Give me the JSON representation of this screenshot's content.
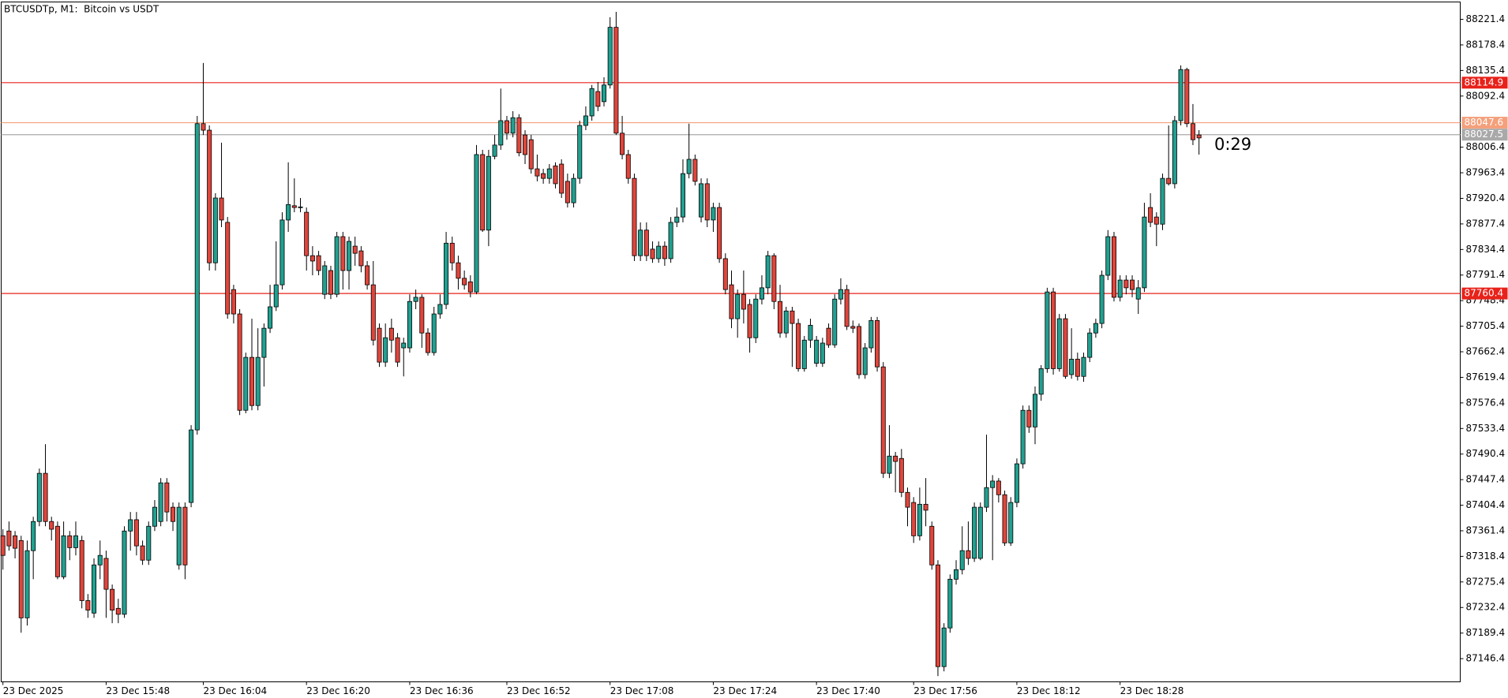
{
  "chart_data": {
    "type": "candlestick",
    "title": "BTCUSDTp, M1:  Bitcoin vs USDT",
    "up_color": "#21a090",
    "down_color": "#e0453b",
    "wick_color": "#000000",
    "ylim": [
      87107.4,
      88250.6
    ],
    "yticks": [
      88221.4,
      88178.4,
      88135.4,
      88092.4,
      88006.4,
      87963.4,
      87920.4,
      87877.4,
      87834.4,
      87791.4,
      87748.4,
      87705.4,
      87662.4,
      87619.4,
      87576.4,
      87533.4,
      87490.4,
      87447.4,
      87404.4,
      87361.4,
      87318.4,
      87275.4,
      87232.4,
      87189.4,
      87146.4
    ],
    "xticks": [
      {
        "value": 0,
        "label": "23 Dec 2025"
      },
      {
        "value": 17,
        "label": "23 Dec 15:48"
      },
      {
        "value": 33,
        "label": "23 Dec 16:04"
      },
      {
        "value": 50,
        "label": "23 Dec 16:20"
      },
      {
        "value": 67,
        "label": "23 Dec 16:36"
      },
      {
        "value": 83,
        "label": "23 Dec 16:52"
      },
      {
        "value": 100,
        "label": "23 Dec 17:08"
      },
      {
        "value": 117,
        "label": "23 Dec 17:24"
      },
      {
        "value": 134,
        "label": "23 Dec 17:40"
      },
      {
        "value": 150,
        "label": "23 Dec 17:56"
      },
      {
        "value": 167,
        "label": "23 Dec 18:12"
      },
      {
        "value": 184,
        "label": "23 Dec 18:28"
      }
    ],
    "price_lines": [
      {
        "value": 88114.9,
        "color": "#e8221a"
      },
      {
        "value": 88047.6,
        "color": "#f4a07c"
      },
      {
        "value": 88027.5,
        "color": "#a9a9a9"
      },
      {
        "value": 87760.4,
        "color": "#e8221a"
      }
    ],
    "countdown": "0:29",
    "countdown_color": "#2aa394",
    "open": [
      87353,
      87361,
      87353,
      87345,
      87215,
      87328,
      87377,
      87458,
      87377,
      87369,
      87284,
      87353,
      87333,
      87345,
      87244,
      87223,
      87304,
      87315,
      87263,
      87231,
      87221,
      87361,
      87380,
      87336,
      87312,
      87369,
      87377,
      87442,
      87401,
      87304,
      87401,
      87409,
      87531,
      88046,
      88035,
      87812,
      87921,
      87880,
      87767,
      87726,
      87564,
      87653,
      87572,
      87653,
      87702,
      87738,
      87775,
      87884,
      87908,
      87905,
      87897,
      87824,
      87824,
      87759,
      87799,
      87759,
      87856,
      87799,
      87840,
      87832,
      87807,
      87775,
      87702,
      87645,
      87702,
      87686,
      87669,
      87669,
      87747,
      87754,
      87694,
      87661,
      87726,
      87742,
      87845,
      87812,
      87786,
      87780,
      87763,
      87994,
      87867,
      87991,
      88010,
      88051,
      88030,
      88056,
      88027,
      88019,
      87970,
      87962,
      87954,
      87975,
      87978,
      87949,
      87913,
      87954,
      88043,
      88059,
      88100,
      88083,
      88111,
      88208,
      88030,
      87994,
      87954,
      87824,
      87867,
      87835,
      87819,
      87840,
      87819,
      87880,
      87889,
      87962,
      87986,
      87889,
      87945,
      87884,
      87905,
      87819,
      87775,
      87718,
      87759,
      87742,
      87686,
      87751,
      87770,
      87824,
      87747,
      87694,
      87731,
      87710,
      87634,
      87682,
      87643,
      87643,
      87702,
      87674,
      87751,
      87767,
      87705,
      87705,
      87624,
      87669,
      87715,
      87637,
      87458,
      87487,
      87483,
      87426,
      87409,
      87353,
      87406,
      87369,
      87304,
      87133,
      87198,
      87280,
      87296,
      87328,
      87315,
      87315,
      87401,
      87434,
      87445,
      87422,
      87341,
      87409,
      87474,
      87564,
      87536,
      87591,
      87634,
      87763,
      87634,
      87718,
      87624,
      87650,
      87621,
      87653,
      87694,
      87710,
      87791,
      87856,
      87754,
      87783,
      87783,
      87751,
      87770,
      87905,
      87889,
      87877,
      87954,
      87945,
      88051,
      88137,
      88046,
      88027
    ],
    "high": [
      87364,
      87377,
      87361,
      87353,
      87345,
      87385,
      87466,
      87507,
      87385,
      87377,
      87377,
      87361,
      87377,
      87353,
      87255,
      87315,
      87345,
      87328,
      87271,
      87247,
      87369,
      87393,
      87393,
      87345,
      87377,
      87413,
      87450,
      87450,
      87409,
      87409,
      87409,
      87539,
      88059,
      88148,
      88043,
      87929,
      88014,
      87889,
      87775,
      87734,
      87661,
      87718,
      87702,
      87710,
      87775,
      87848,
      87897,
      87981,
      87954,
      87921,
      87905,
      87840,
      87832,
      87815,
      87807,
      87864,
      87864,
      87856,
      87856,
      87840,
      87815,
      87815,
      87710,
      87710,
      87718,
      87694,
      87686,
      87759,
      87767,
      87759,
      87702,
      87738,
      87759,
      87864,
      87856,
      87824,
      87799,
      87791,
      88010,
      88002,
      88002,
      88027,
      88105,
      88059,
      88067,
      88062,
      88035,
      88027,
      87994,
      87970,
      87978,
      87981,
      87986,
      87962,
      87962,
      88051,
      88075,
      88111,
      88116,
      88124,
      88225,
      88234,
      88059,
      88002,
      87962,
      87880,
      87880,
      87848,
      87848,
      87848,
      87889,
      87905,
      87986,
      88046,
      87994,
      87954,
      87954,
      87913,
      87913,
      87828,
      87799,
      87767,
      87799,
      87751,
      87759,
      87791,
      87832,
      87828,
      87775,
      87738,
      87738,
      87718,
      87689,
      87718,
      87689,
      87686,
      87710,
      87759,
      87786,
      87775,
      87715,
      87710,
      87677,
      87721,
      87721,
      87645,
      87539,
      87494,
      87499,
      87434,
      87418,
      87434,
      87450,
      87377,
      87312,
      87206,
      87288,
      87312,
      87369,
      87377,
      87409,
      87409,
      87523,
      87455,
      87450,
      87429,
      87418,
      87483,
      87572,
      87572,
      87604,
      87640,
      87770,
      87770,
      87726,
      87726,
      87702,
      87661,
      87661,
      87702,
      87718,
      87799,
      87867,
      87864,
      87791,
      87791,
      87791,
      87783,
      87913,
      87929,
      87897,
      87962,
      88043,
      88059,
      88144,
      88140,
      88079,
      88035
    ],
    "low": [
      87296,
      87328,
      87315,
      87190,
      87202,
      87280,
      87369,
      87369,
      87345,
      87280,
      87280,
      87312,
      87320,
      87231,
      87215,
      87215,
      87280,
      87215,
      87206,
      87206,
      87215,
      87328,
      87320,
      87304,
      87304,
      87361,
      87369,
      87377,
      87361,
      87296,
      87280,
      87401,
      87523,
      88027,
      87799,
      87799,
      87872,
      87718,
      87710,
      87556,
      87559,
      87564,
      87564,
      87604,
      87694,
      87731,
      87767,
      87864,
      87897,
      87897,
      87799,
      87791,
      87791,
      87751,
      87751,
      87754,
      87767,
      87767,
      87807,
      87796,
      87767,
      87673,
      87637,
      87637,
      87661,
      87637,
      87621,
      87661,
      87734,
      87669,
      87656,
      87656,
      87718,
      87734,
      87799,
      87767,
      87767,
      87754,
      87759,
      87864,
      87840,
      87986,
      88002,
      88019,
      88023,
      87991,
      87978,
      87962,
      87949,
      87945,
      87945,
      87937,
      87921,
      87905,
      87905,
      87945,
      88035,
      88051,
      88067,
      88075,
      88105,
      88027,
      87986,
      87945,
      87815,
      87815,
      87815,
      87812,
      87812,
      87807,
      87812,
      87872,
      87880,
      87954,
      87942,
      87880,
      87872,
      87864,
      87812,
      87759,
      87702,
      87686,
      87710,
      87661,
      87677,
      87742,
      87759,
      87734,
      87686,
      87686,
      87637,
      87629,
      87629,
      87669,
      87637,
      87637,
      87669,
      87669,
      87742,
      87699,
      87694,
      87617,
      87617,
      87661,
      87629,
      87450,
      87450,
      87426,
      87418,
      87369,
      87341,
      87345,
      87369,
      87296,
      87117,
      87125,
      87190,
      87271,
      87288,
      87304,
      87309,
      87312,
      87393,
      87312,
      87409,
      87336,
      87336,
      87401,
      87466,
      87526,
      87507,
      87580,
      87627,
      87624,
      87629,
      87617,
      87617,
      87614,
      87612,
      87645,
      87686,
      87702,
      87783,
      87747,
      87747,
      87759,
      87754,
      87726,
      87763,
      87872,
      87840,
      87867,
      87942,
      87937,
      88043,
      88040,
      88010,
      87994
    ],
    "close": [
      87320,
      87336,
      87332,
      87215,
      87328,
      87377,
      87458,
      87377,
      87364,
      87284,
      87353,
      87333,
      87353,
      87244,
      87228,
      87304,
      87320,
      87263,
      87228,
      87221,
      87361,
      87380,
      87336,
      87312,
      87369,
      87401,
      87442,
      87393,
      87377,
      87401,
      87304,
      87531,
      88046,
      88035,
      87812,
      87921,
      87884,
      87726,
      87726,
      87564,
      87653,
      87572,
      87653,
      87702,
      87738,
      87775,
      87884,
      87910,
      87905,
      87906,
      87824,
      87815,
      87799,
      87807,
      87759,
      87856,
      87799,
      87848,
      87828,
      87807,
      87775,
      87682,
      87645,
      87686,
      87682,
      87645,
      87677,
      87747,
      87754,
      87694,
      87661,
      87726,
      87742,
      87845,
      87812,
      87786,
      87775,
      87763,
      87994,
      87867,
      87991,
      88010,
      88051,
      88030,
      88056,
      87997,
      87994,
      87970,
      87958,
      87954,
      87970,
      87945,
      87929,
      87913,
      87954,
      88043,
      88059,
      88105,
      88075,
      88111,
      88208,
      88030,
      87994,
      87954,
      87824,
      87867,
      87824,
      87819,
      87840,
      87819,
      87880,
      87889,
      87962,
      87986,
      87949,
      87945,
      87884,
      87905,
      87819,
      87767,
      87718,
      87759,
      87734,
      87686,
      87751,
      87770,
      87824,
      87747,
      87694,
      87731,
      87710,
      87634,
      87682,
      87707,
      87682,
      87677,
      87674,
      87751,
      87767,
      87705,
      87702,
      87624,
      87669,
      87715,
      87637,
      87458,
      87487,
      87478,
      87426,
      87401,
      87353,
      87406,
      87396,
      87304,
      87133,
      87198,
      87280,
      87296,
      87328,
      87315,
      87401,
      87401,
      87434,
      87445,
      87422,
      87341,
      87409,
      87474,
      87564,
      87536,
      87591,
      87634,
      87763,
      87634,
      87718,
      87621,
      87650,
      87621,
      87653,
      87694,
      87710,
      87791,
      87856,
      87754,
      87783,
      87770,
      87767,
      87770,
      87889,
      87880,
      87877,
      87954,
      87945,
      88051,
      88137,
      88046,
      88019,
      88022
    ]
  }
}
